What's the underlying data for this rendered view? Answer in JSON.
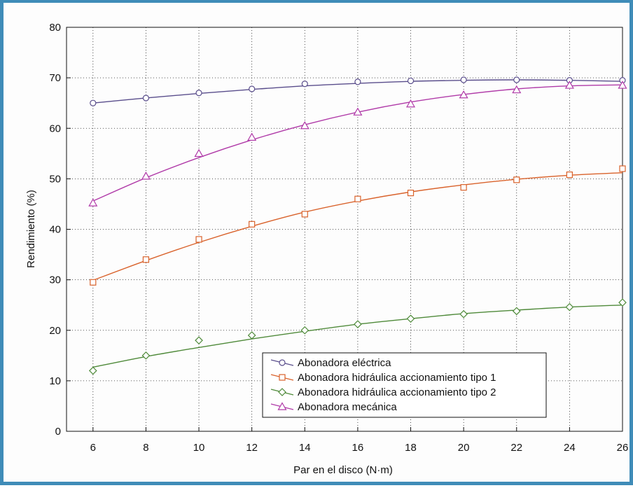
{
  "chart_data": {
    "type": "line",
    "xlabel": "Par en el disco (N·m)",
    "ylabel": "Rendimiento (%)",
    "xlim": [
      5,
      26
    ],
    "ylim": [
      0,
      80
    ],
    "xticks": [
      6,
      8,
      10,
      12,
      14,
      16,
      18,
      20,
      22,
      24,
      26
    ],
    "yticks": [
      0,
      10,
      20,
      30,
      40,
      50,
      60,
      70,
      80
    ],
    "grid": true,
    "legend_position": "bottom-center",
    "x": [
      6,
      8,
      10,
      12,
      14,
      16,
      18,
      20,
      22,
      24,
      26
    ],
    "series": [
      {
        "name": "Abonadora eléctrica",
        "marker": "circle",
        "color": "#5a4e8c",
        "values": [
          65,
          66,
          67,
          67.8,
          68.8,
          69.2,
          69.4,
          69.6,
          69.6,
          69.5,
          69.5
        ],
        "fit": [
          65,
          66,
          66.9,
          67.7,
          68.4,
          68.9,
          69.3,
          69.5,
          69.6,
          69.5,
          69.3
        ]
      },
      {
        "name": "Abonadora hidráulica accionamiento tipo 1",
        "marker": "square",
        "color": "#d9622b",
        "values": [
          29.5,
          34,
          38,
          41,
          43,
          46,
          47.2,
          48.3,
          49.8,
          50.8,
          52
        ],
        "fit": [
          29.9,
          33.8,
          37.4,
          40.6,
          43.4,
          45.6,
          47.4,
          48.8,
          49.9,
          50.7,
          51.2
        ]
      },
      {
        "name": "Abonadora hidráulica accionamiento tipo 2",
        "marker": "diamond",
        "color": "#4f8a3a",
        "values": [
          12,
          15,
          18,
          19,
          20,
          21.2,
          22.3,
          23.2,
          23.8,
          24.6,
          25.5
        ],
        "fit": [
          12.7,
          14.8,
          16.6,
          18.3,
          19.8,
          21.2,
          22.3,
          23.3,
          24,
          24.6,
          25
        ]
      },
      {
        "name": "Abonadora mecánica",
        "marker": "triangle",
        "color": "#b03aa8",
        "values": [
          45.2,
          50.5,
          55,
          58.2,
          60.5,
          63.2,
          64.8,
          66.6,
          67.6,
          68.5,
          68.5
        ],
        "fit": [
          45.6,
          50.2,
          54.2,
          57.7,
          60.7,
          63.2,
          65.2,
          66.7,
          67.8,
          68.4,
          68.6
        ]
      }
    ]
  }
}
